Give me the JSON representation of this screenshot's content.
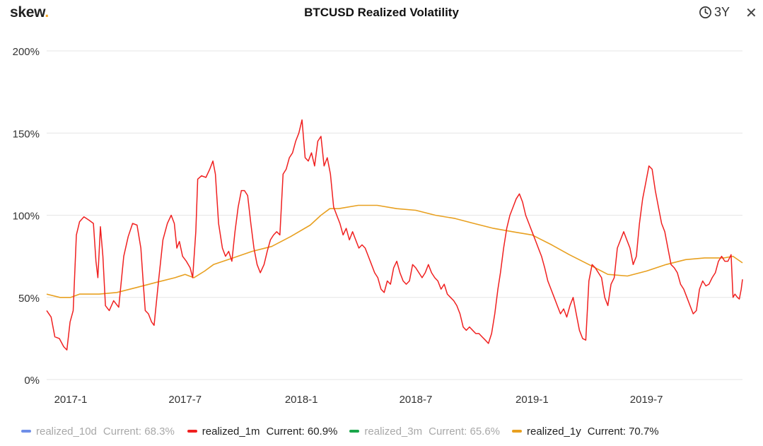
{
  "header": {
    "logo_text": "skew",
    "logo_dot": ".",
    "title": "BTCUSD Realized Volatility",
    "range_label": "3Y",
    "close_label": "✕"
  },
  "colors": {
    "grid": "#e6e6e6",
    "axis_text": "#333333"
  },
  "legend": [
    {
      "name": "realized_10d",
      "current": "Current: 68.3%",
      "color": "#6f8fe8",
      "visible": false
    },
    {
      "name": "realized_1m",
      "current": "Current: 60.9%",
      "color": "#f02020",
      "visible": true
    },
    {
      "name": "realized_3m",
      "current": "Current: 65.6%",
      "color": "#1aa64a",
      "visible": false
    },
    {
      "name": "realized_1y",
      "current": "Current: 70.7%",
      "color": "#e8a020",
      "visible": true
    }
  ],
  "chart_data": {
    "type": "line",
    "title": "BTCUSD Realized Volatility",
    "xlabel": "",
    "ylabel": "",
    "x_ticks": [
      "2017-1",
      "2017-7",
      "2018-1",
      "2018-7",
      "2019-1",
      "2019-7"
    ],
    "y_ticks": [
      "0%",
      "50%",
      "100%",
      "150%",
      "200%"
    ],
    "xlim": [
      "2016-11-24",
      "2019-11-30"
    ],
    "ylim": [
      0,
      200
    ],
    "grid": true,
    "legend_position": "bottom",
    "series": [
      {
        "name": "realized_1m",
        "color": "#f02020",
        "points": [
          [
            "2016-11-24",
            42
          ],
          [
            "2016-12-01",
            38
          ],
          [
            "2016-12-07",
            26
          ],
          [
            "2016-12-14",
            25
          ],
          [
            "2016-12-21",
            20
          ],
          [
            "2016-12-26",
            18
          ],
          [
            "2016-12-31",
            35
          ],
          [
            "2017-01-05",
            42
          ],
          [
            "2017-01-10",
            88
          ],
          [
            "2017-01-15",
            96
          ],
          [
            "2017-01-22",
            99
          ],
          [
            "2017-01-30",
            97
          ],
          [
            "2017-02-06",
            95
          ],
          [
            "2017-02-10",
            72
          ],
          [
            "2017-02-13",
            62
          ],
          [
            "2017-02-17",
            93
          ],
          [
            "2017-02-21",
            75
          ],
          [
            "2017-02-25",
            45
          ],
          [
            "2017-03-03",
            42
          ],
          [
            "2017-03-10",
            48
          ],
          [
            "2017-03-18",
            44
          ],
          [
            "2017-03-26",
            75
          ],
          [
            "2017-04-02",
            87
          ],
          [
            "2017-04-09",
            95
          ],
          [
            "2017-04-16",
            94
          ],
          [
            "2017-04-22",
            80
          ],
          [
            "2017-04-26",
            58
          ],
          [
            "2017-04-29",
            42
          ],
          [
            "2017-05-04",
            40
          ],
          [
            "2017-05-09",
            35
          ],
          [
            "2017-05-13",
            33
          ],
          [
            "2017-05-20",
            60
          ],
          [
            "2017-05-27",
            85
          ],
          [
            "2017-06-03",
            95
          ],
          [
            "2017-06-09",
            100
          ],
          [
            "2017-06-14",
            95
          ],
          [
            "2017-06-18",
            80
          ],
          [
            "2017-06-22",
            84
          ],
          [
            "2017-06-27",
            75
          ],
          [
            "2017-07-03",
            72
          ],
          [
            "2017-07-09",
            68
          ],
          [
            "2017-07-13",
            62
          ],
          [
            "2017-07-18",
            90
          ],
          [
            "2017-07-21",
            122
          ],
          [
            "2017-07-27",
            124
          ],
          [
            "2017-08-03",
            123
          ],
          [
            "2017-08-09",
            128
          ],
          [
            "2017-08-14",
            133
          ],
          [
            "2017-08-18",
            125
          ],
          [
            "2017-08-23",
            95
          ],
          [
            "2017-08-29",
            80
          ],
          [
            "2017-09-03",
            75
          ],
          [
            "2017-09-08",
            78
          ],
          [
            "2017-09-13",
            72
          ],
          [
            "2017-09-18",
            90
          ],
          [
            "2017-09-23",
            105
          ],
          [
            "2017-09-28",
            115
          ],
          [
            "2017-10-03",
            115
          ],
          [
            "2017-10-08",
            112
          ],
          [
            "2017-10-13",
            95
          ],
          [
            "2017-10-18",
            80
          ],
          [
            "2017-10-23",
            70
          ],
          [
            "2017-10-28",
            65
          ],
          [
            "2017-11-03",
            70
          ],
          [
            "2017-11-08",
            78
          ],
          [
            "2017-11-13",
            85
          ],
          [
            "2017-11-18",
            88
          ],
          [
            "2017-11-23",
            90
          ],
          [
            "2017-11-28",
            88
          ],
          [
            "2017-12-03",
            125
          ],
          [
            "2017-12-08",
            128
          ],
          [
            "2017-12-13",
            135
          ],
          [
            "2017-12-18",
            138
          ],
          [
            "2017-12-23",
            145
          ],
          [
            "2017-12-28",
            150
          ],
          [
            "2018-01-02",
            158
          ],
          [
            "2018-01-07",
            135
          ],
          [
            "2018-01-12",
            133
          ],
          [
            "2018-01-17",
            138
          ],
          [
            "2018-01-22",
            130
          ],
          [
            "2018-01-27",
            145
          ],
          [
            "2018-02-01",
            148
          ],
          [
            "2018-02-06",
            130
          ],
          [
            "2018-02-11",
            135
          ],
          [
            "2018-02-16",
            125
          ],
          [
            "2018-02-21",
            105
          ],
          [
            "2018-02-26",
            100
          ],
          [
            "2018-03-03",
            95
          ],
          [
            "2018-03-08",
            88
          ],
          [
            "2018-03-13",
            92
          ],
          [
            "2018-03-18",
            85
          ],
          [
            "2018-03-23",
            90
          ],
          [
            "2018-03-28",
            85
          ],
          [
            "2018-04-02",
            80
          ],
          [
            "2018-04-07",
            82
          ],
          [
            "2018-04-12",
            80
          ],
          [
            "2018-04-17",
            75
          ],
          [
            "2018-04-22",
            70
          ],
          [
            "2018-04-27",
            65
          ],
          [
            "2018-05-02",
            62
          ],
          [
            "2018-05-07",
            55
          ],
          [
            "2018-05-12",
            53
          ],
          [
            "2018-05-17",
            60
          ],
          [
            "2018-05-22",
            58
          ],
          [
            "2018-05-27",
            68
          ],
          [
            "2018-06-01",
            72
          ],
          [
            "2018-06-06",
            65
          ],
          [
            "2018-06-11",
            60
          ],
          [
            "2018-06-16",
            58
          ],
          [
            "2018-06-21",
            60
          ],
          [
            "2018-06-26",
            70
          ],
          [
            "2018-07-01",
            68
          ],
          [
            "2018-07-06",
            65
          ],
          [
            "2018-07-11",
            62
          ],
          [
            "2018-07-16",
            65
          ],
          [
            "2018-07-21",
            70
          ],
          [
            "2018-07-26",
            65
          ],
          [
            "2018-07-31",
            62
          ],
          [
            "2018-08-05",
            60
          ],
          [
            "2018-08-10",
            55
          ],
          [
            "2018-08-15",
            58
          ],
          [
            "2018-08-20",
            52
          ],
          [
            "2018-08-25",
            50
          ],
          [
            "2018-08-30",
            48
          ],
          [
            "2018-09-04",
            45
          ],
          [
            "2018-09-09",
            40
          ],
          [
            "2018-09-14",
            32
          ],
          [
            "2018-09-19",
            30
          ],
          [
            "2018-09-24",
            32
          ],
          [
            "2018-09-29",
            30
          ],
          [
            "2018-10-04",
            28
          ],
          [
            "2018-10-09",
            28
          ],
          [
            "2018-10-14",
            26
          ],
          [
            "2018-10-19",
            24
          ],
          [
            "2018-10-24",
            22
          ],
          [
            "2018-10-29",
            28
          ],
          [
            "2018-11-03",
            40
          ],
          [
            "2018-11-08",
            55
          ],
          [
            "2018-11-12",
            65
          ],
          [
            "2018-11-17",
            80
          ],
          [
            "2018-11-22",
            92
          ],
          [
            "2018-11-27",
            100
          ],
          [
            "2018-12-02",
            105
          ],
          [
            "2018-12-07",
            110
          ],
          [
            "2018-12-12",
            113
          ],
          [
            "2018-12-17",
            108
          ],
          [
            "2018-12-22",
            100
          ],
          [
            "2018-12-27",
            95
          ],
          [
            "2019-01-01",
            90
          ],
          [
            "2019-01-06",
            85
          ],
          [
            "2019-01-11",
            80
          ],
          [
            "2019-01-16",
            75
          ],
          [
            "2019-01-21",
            68
          ],
          [
            "2019-01-26",
            60
          ],
          [
            "2019-01-31",
            55
          ],
          [
            "2019-02-05",
            50
          ],
          [
            "2019-02-10",
            45
          ],
          [
            "2019-02-15",
            40
          ],
          [
            "2019-02-20",
            43
          ],
          [
            "2019-02-25",
            38
          ],
          [
            "2019-03-02",
            45
          ],
          [
            "2019-03-07",
            50
          ],
          [
            "2019-03-12",
            40
          ],
          [
            "2019-03-17",
            30
          ],
          [
            "2019-03-22",
            25
          ],
          [
            "2019-03-27",
            24
          ],
          [
            "2019-04-01",
            60
          ],
          [
            "2019-04-06",
            70
          ],
          [
            "2019-04-11",
            68
          ],
          [
            "2019-04-16",
            65
          ],
          [
            "2019-04-21",
            62
          ],
          [
            "2019-04-26",
            50
          ],
          [
            "2019-05-01",
            45
          ],
          [
            "2019-05-06",
            58
          ],
          [
            "2019-05-11",
            62
          ],
          [
            "2019-05-16",
            80
          ],
          [
            "2019-05-21",
            85
          ],
          [
            "2019-05-26",
            90
          ],
          [
            "2019-05-31",
            85
          ],
          [
            "2019-06-05",
            80
          ],
          [
            "2019-06-10",
            70
          ],
          [
            "2019-06-15",
            75
          ],
          [
            "2019-06-20",
            95
          ],
          [
            "2019-06-25",
            110
          ],
          [
            "2019-06-30",
            120
          ],
          [
            "2019-07-05",
            130
          ],
          [
            "2019-07-10",
            128
          ],
          [
            "2019-07-15",
            115
          ],
          [
            "2019-07-20",
            105
          ],
          [
            "2019-07-25",
            95
          ],
          [
            "2019-07-30",
            90
          ],
          [
            "2019-08-04",
            80
          ],
          [
            "2019-08-09",
            70
          ],
          [
            "2019-08-14",
            68
          ],
          [
            "2019-08-19",
            65
          ],
          [
            "2019-08-24",
            58
          ],
          [
            "2019-08-29",
            55
          ],
          [
            "2019-09-03",
            50
          ],
          [
            "2019-09-08",
            45
          ],
          [
            "2019-09-13",
            40
          ],
          [
            "2019-09-18",
            42
          ],
          [
            "2019-09-23",
            55
          ],
          [
            "2019-09-28",
            60
          ],
          [
            "2019-10-03",
            57
          ],
          [
            "2019-10-08",
            58
          ],
          [
            "2019-10-13",
            62
          ],
          [
            "2019-10-18",
            65
          ],
          [
            "2019-10-23",
            72
          ],
          [
            "2019-10-28",
            75
          ],
          [
            "2019-11-02",
            72
          ],
          [
            "2019-11-07",
            72
          ],
          [
            "2019-11-12",
            76
          ],
          [
            "2019-11-15",
            50
          ],
          [
            "2019-11-18",
            52
          ],
          [
            "2019-11-22",
            50
          ],
          [
            "2019-11-25",
            49
          ],
          [
            "2019-11-28",
            55
          ],
          [
            "2019-11-30",
            61
          ]
        ]
      },
      {
        "name": "realized_1y",
        "color": "#e8a020",
        "points": [
          [
            "2016-11-24",
            52
          ],
          [
            "2016-12-15",
            50
          ],
          [
            "2017-01-01",
            50
          ],
          [
            "2017-01-15",
            52
          ],
          [
            "2017-02-15",
            52
          ],
          [
            "2017-03-15",
            53
          ],
          [
            "2017-04-15",
            56
          ],
          [
            "2017-05-15",
            59
          ],
          [
            "2017-06-15",
            62
          ],
          [
            "2017-07-01",
            64
          ],
          [
            "2017-07-15",
            62
          ],
          [
            "2017-08-01",
            66
          ],
          [
            "2017-08-15",
            70
          ],
          [
            "2017-09-15",
            74
          ],
          [
            "2017-10-15",
            78
          ],
          [
            "2017-11-15",
            81
          ],
          [
            "2017-12-15",
            87
          ],
          [
            "2018-01-15",
            94
          ],
          [
            "2018-02-01",
            100
          ],
          [
            "2018-02-15",
            104
          ],
          [
            "2018-03-01",
            104
          ],
          [
            "2018-04-01",
            106
          ],
          [
            "2018-05-01",
            106
          ],
          [
            "2018-06-01",
            104
          ],
          [
            "2018-07-01",
            103
          ],
          [
            "2018-08-01",
            100
          ],
          [
            "2018-09-01",
            98
          ],
          [
            "2018-10-01",
            95
          ],
          [
            "2018-11-01",
            92
          ],
          [
            "2018-12-01",
            90
          ],
          [
            "2019-01-01",
            88
          ],
          [
            "2019-02-01",
            82
          ],
          [
            "2019-03-01",
            76
          ],
          [
            "2019-04-01",
            70
          ],
          [
            "2019-05-01",
            64
          ],
          [
            "2019-06-01",
            63
          ],
          [
            "2019-07-01",
            66
          ],
          [
            "2019-08-01",
            70
          ],
          [
            "2019-09-01",
            73
          ],
          [
            "2019-10-01",
            74
          ],
          [
            "2019-11-01",
            74
          ],
          [
            "2019-11-15",
            75
          ],
          [
            "2019-11-30",
            71
          ]
        ]
      }
    ]
  }
}
